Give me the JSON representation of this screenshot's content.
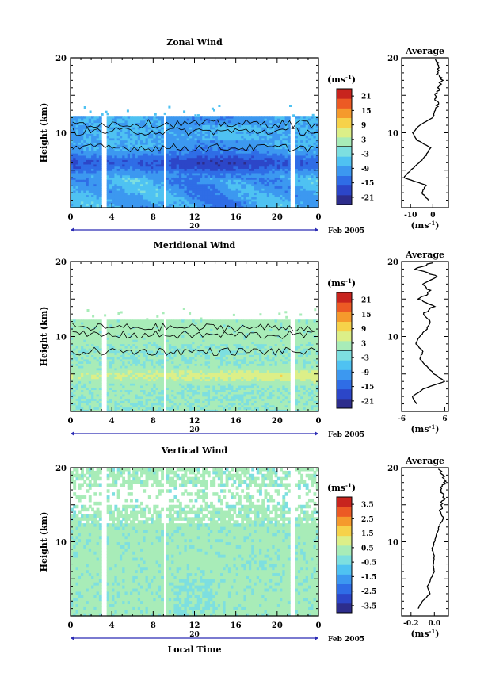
{
  "chart_data": [
    {
      "type": "heatmap",
      "title": "Zonal Wind",
      "ylabel": "Height (km)",
      "ylim": [
        0,
        20
      ],
      "y_ticks": [
        "20",
        "10"
      ],
      "x_ticks": [
        "0",
        "4",
        "8",
        "12",
        "16",
        "20",
        "0"
      ],
      "xlim": [
        0,
        24
      ],
      "date_day": "20",
      "date_label": "Feb 2005",
      "colorbar": {
        "unit": "(ms",
        "unit_exp": "-1",
        "tick_labels": [
          "21",
          "15",
          "9",
          "3",
          "-3",
          "-9",
          "-15",
          "-21"
        ],
        "range": [
          -24,
          24
        ],
        "zero_contour": 0
      },
      "profile": {
        "title": "Average",
        "y_ticks": [
          "20",
          "10"
        ],
        "x_ticks": [
          "-10",
          "0"
        ],
        "xlabel": "(ms",
        "xlabel_exp": "-1",
        "xlim": [
          -14,
          7
        ],
        "heights": [
          1,
          2,
          3,
          4,
          5,
          6,
          7,
          8,
          9,
          10,
          11,
          12,
          13,
          14,
          15,
          16,
          17,
          18,
          19,
          20
        ],
        "values": [
          -2,
          -5,
          -3,
          -13,
          -10,
          -6,
          -3,
          -1,
          -7,
          -9,
          -6,
          0,
          1,
          2,
          1,
          3,
          4,
          2,
          3,
          0
        ]
      }
    },
    {
      "type": "heatmap",
      "title": "Meridional Wind",
      "ylabel": "Height (km)",
      "ylim": [
        0,
        20
      ],
      "y_ticks": [
        "20",
        "10"
      ],
      "x_ticks": [
        "0",
        "4",
        "8",
        "12",
        "16",
        "20",
        "0"
      ],
      "xlim": [
        0,
        24
      ],
      "date_day": "20",
      "date_label": "Feb 2005",
      "colorbar": {
        "unit": "(ms",
        "unit_exp": "-1",
        "tick_labels": [
          "21",
          "15",
          "9",
          "3",
          "-3",
          "-9",
          "-15",
          "-21"
        ],
        "range": [
          -24,
          24
        ],
        "zero_contour": 0
      },
      "profile": {
        "title": "Average",
        "y_ticks": [
          "20",
          "10"
        ],
        "x_ticks": [
          "-6",
          "6"
        ],
        "xlabel": "(ms",
        "xlabel_exp": "-1",
        "xlim": [
          -6,
          7
        ],
        "heights": [
          1,
          2,
          3,
          4,
          5,
          6,
          7,
          8,
          9,
          10,
          11,
          12,
          13,
          14,
          15,
          16,
          17,
          18,
          19,
          20
        ],
        "values": [
          -2,
          -3,
          0,
          6,
          3,
          1,
          -1,
          0,
          -2,
          -1,
          1,
          2,
          0,
          3,
          -1,
          2,
          0,
          4,
          -2,
          3
        ]
      }
    },
    {
      "type": "heatmap",
      "title": "Vertical Wind",
      "ylabel": "Height (km)",
      "ylim": [
        0,
        20
      ],
      "y_ticks": [
        "20",
        "10"
      ],
      "x_ticks": [
        "0",
        "4",
        "8",
        "12",
        "16",
        "20",
        "0"
      ],
      "xlim": [
        0,
        24
      ],
      "date_day": "20",
      "date_label": "Feb 2005",
      "xlabel": "Local Time",
      "colorbar": {
        "unit": "(ms",
        "unit_exp": "-1",
        "tick_labels": [
          "3.5",
          "2.5",
          "1.5",
          "0.5",
          "-0.5",
          "-1.5",
          "-2.5",
          "-3.5"
        ],
        "range": [
          -4,
          4
        ]
      },
      "profile": {
        "title": "Average",
        "y_ticks": [
          "20",
          "10"
        ],
        "x_ticks": [
          "-0.2",
          "0.0"
        ],
        "xlabel": "(ms",
        "xlabel_exp": "-1",
        "xlim": [
          -0.28,
          0.12
        ],
        "heights": [
          1,
          2,
          3,
          4,
          5,
          6,
          7,
          8,
          9,
          10,
          11,
          12,
          13,
          14,
          15,
          16,
          17,
          18,
          19,
          20
        ],
        "values": [
          -0.14,
          -0.1,
          -0.04,
          -0.06,
          -0.03,
          0.0,
          -0.01,
          0.0,
          -0.02,
          0.0,
          0.02,
          0.04,
          0.07,
          0.05,
          0.06,
          0.08,
          0.05,
          0.09,
          0.07,
          0.04
        ]
      }
    }
  ],
  "colors": {
    "scale": [
      "#2d2d8c",
      "#2c46c8",
      "#2f6de6",
      "#3c98f0",
      "#4fc2f2",
      "#7ddfe0",
      "#a8ecb8",
      "#dcef88",
      "#f6d24a",
      "#f59a2c",
      "#ec5a24",
      "#c8241e"
    ],
    "axis": "#000000",
    "date_axis": "#2b2bb4"
  }
}
